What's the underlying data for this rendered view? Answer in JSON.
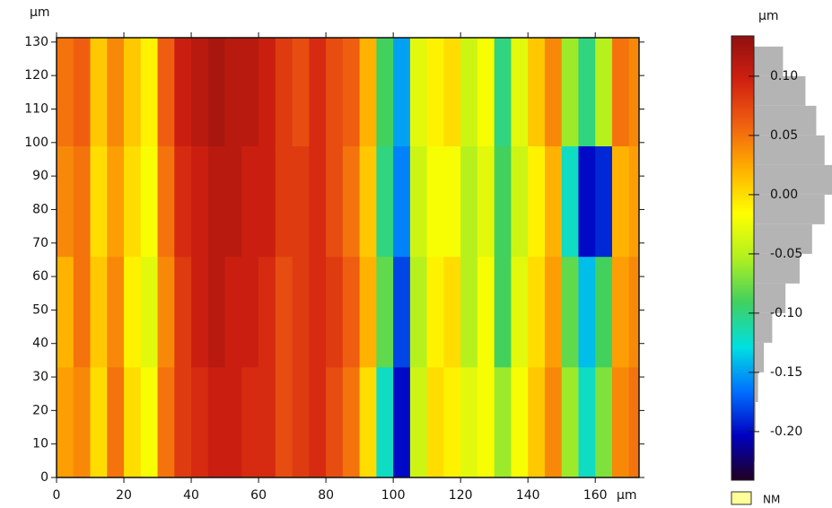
{
  "chart_data": {
    "type": "heatmap",
    "y_label": "µm",
    "x_label": "µm",
    "colorbar_label": "µm",
    "nm_label": "NM",
    "nm_color": "#ffff99",
    "colormap": [
      "#200020",
      "#0000c0",
      "#0070ff",
      "#00e0e0",
      "#40d060",
      "#b0f020",
      "#ffff00",
      "#ffb000",
      "#f06010",
      "#d02010",
      "#901010"
    ],
    "x": [
      0,
      5,
      10,
      15,
      20,
      25,
      30,
      35,
      40,
      45,
      50,
      55,
      60,
      65,
      70,
      75,
      80,
      85,
      90,
      95,
      100,
      105,
      110,
      115,
      120,
      125,
      130,
      135,
      140,
      145,
      150,
      155,
      160,
      165,
      170,
      173
    ],
    "y": [
      0,
      33,
      66,
      99,
      131.3
    ],
    "z": [
      [
        0.03,
        0.04,
        0.0,
        0.05,
        0.0,
        -0.02,
        0.05,
        0.08,
        0.09,
        0.1,
        0.1,
        0.09,
        0.09,
        0.07,
        0.08,
        0.09,
        0.07,
        0.05,
        0.0,
        -0.12,
        -0.2,
        -0.04,
        0.0,
        -0.01,
        -0.03,
        -0.02,
        -0.06,
        -0.02,
        0.01,
        0.04,
        -0.06,
        -0.12,
        -0.07,
        0.04,
        0.05
      ],
      [
        0.02,
        0.05,
        0.01,
        0.04,
        -0.01,
        -0.03,
        0.04,
        0.08,
        0.1,
        0.11,
        0.1,
        0.1,
        0.09,
        0.07,
        0.08,
        0.09,
        0.08,
        0.06,
        0.02,
        -0.08,
        -0.18,
        -0.05,
        -0.01,
        0.0,
        -0.05,
        -0.02,
        -0.09,
        -0.03,
        0.0,
        0.03,
        -0.08,
        -0.14,
        -0.09,
        0.03,
        0.04
      ],
      [
        0.04,
        0.05,
        0.0,
        0.03,
        0.0,
        -0.02,
        0.05,
        0.09,
        0.1,
        0.11,
        0.11,
        0.1,
        0.1,
        0.08,
        0.08,
        0.09,
        0.07,
        0.05,
        0.01,
        -0.1,
        -0.16,
        -0.04,
        -0.02,
        -0.02,
        -0.05,
        -0.03,
        -0.09,
        -0.04,
        -0.01,
        0.02,
        -0.12,
        -0.2,
        -0.19,
        0.02,
        0.03
      ],
      [
        0.05,
        0.06,
        0.01,
        0.04,
        0.01,
        -0.01,
        0.06,
        0.1,
        0.11,
        0.12,
        0.11,
        0.11,
        0.1,
        0.08,
        0.07,
        0.09,
        0.07,
        0.06,
        0.02,
        -0.09,
        -0.15,
        -0.03,
        -0.01,
        0.0,
        -0.04,
        -0.02,
        -0.1,
        -0.03,
        0.01,
        0.04,
        -0.06,
        -0.1,
        -0.05,
        0.05,
        0.04
      ]
    ],
    "xlim": [
      0,
      173
    ],
    "ylim": [
      0,
      131.3
    ],
    "xticks": [
      0,
      20,
      40,
      60,
      80,
      100,
      120,
      140,
      160
    ],
    "yticks": [
      0,
      10,
      20,
      30,
      40,
      50,
      60,
      70,
      80,
      90,
      100,
      110,
      120,
      130
    ],
    "clim": [
      -0.241,
      0.134
    ],
    "cticks": [
      {
        "value": 0.1,
        "label": "0.10"
      },
      {
        "value": 0.05,
        "label": "0.05"
      },
      {
        "value": 0,
        "label": "0.00"
      },
      {
        "value": -0.05,
        "label": "-0.05"
      },
      {
        "value": -0.1,
        "label": "-0.10"
      },
      {
        "value": -0.15,
        "label": "-0.15"
      },
      {
        "value": -0.2,
        "label": "-0.20"
      }
    ],
    "histogram": {
      "color": "#b4b4b4",
      "bins": [
        -0.25,
        -0.225,
        -0.2,
        -0.175,
        -0.15,
        -0.125,
        -0.1,
        -0.075,
        -0.05,
        -0.025,
        0,
        0.025,
        0.05,
        0.075,
        0.1,
        0.125
      ],
      "counts": [
        0,
        1,
        2,
        5,
        12,
        22,
        38,
        55,
        70,
        85,
        95,
        85,
        75,
        62,
        35
      ]
    }
  }
}
